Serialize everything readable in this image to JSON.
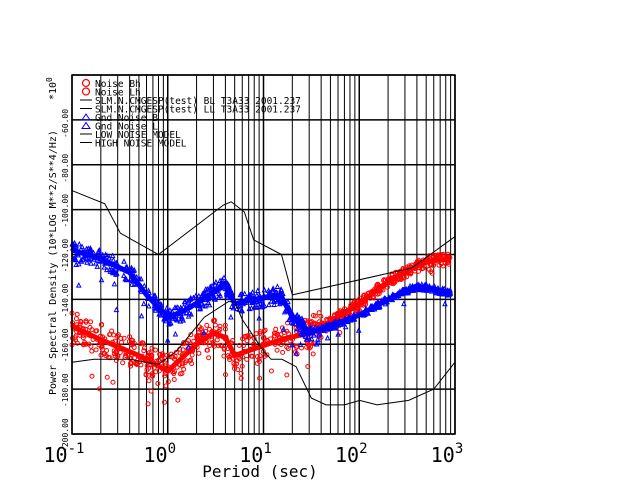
{
  "chart_data": {
    "type": "line",
    "title": "",
    "xlabel": "Period (sec)",
    "ylabel": "Power Spectral Density (10*LOG M**2/S**4/Hz)",
    "y_multiplier": "*10",
    "y_multiplier_exp": "0",
    "xscale": "log",
    "xlim": [
      0.1,
      1000
    ],
    "ylim": [
      -200,
      -40
    ],
    "x_ticks": [
      {
        "base": "10",
        "exp": "-1"
      },
      {
        "base": "10",
        "exp": "0"
      },
      {
        "base": "10",
        "exp": "1"
      },
      {
        "base": "10",
        "exp": "2"
      },
      {
        "base": "10",
        "exp": "3"
      }
    ],
    "y_ticks": [
      {
        "v": -200,
        "label": "-200.00"
      },
      {
        "v": -180,
        "label": "-180.00"
      },
      {
        "v": -160,
        "label": "-160.00"
      },
      {
        "v": -140,
        "label": "-140.00"
      },
      {
        "v": -120,
        "label": "-120.00"
      },
      {
        "v": -100,
        "label": "-100.00"
      },
      {
        "v": -80,
        "label": "-80.00"
      },
      {
        "v": -60,
        "label": "-60.00"
      }
    ],
    "grid": true,
    "legend": {
      "placement": "top-left",
      "entries": [
        {
          "label": "Noise Bh",
          "marker": "circle",
          "color": "#ff0000"
        },
        {
          "label": "Noise Lh",
          "marker": "circle",
          "color": "#ff0000"
        },
        {
          "label": "SLM.N.CMGESP(test) BL T3A33 2001.237",
          "marker": "line",
          "color": "#000000"
        },
        {
          "label": "SLM.N.CMGESP(test) LL T3A33 2001.237",
          "marker": "line",
          "color": "#000000"
        },
        {
          "label": "Gnd Noise B",
          "marker": "triangle",
          "color": "#0000ff"
        },
        {
          "label": "Gnd Noise L",
          "marker": "triangle",
          "color": "#0000ff"
        },
        {
          "label": "LOW NOISE MODEL",
          "marker": "line",
          "color": "#000000"
        },
        {
          "label": "HIGH NOISE MODEL",
          "marker": "line",
          "color": "#000000"
        }
      ]
    },
    "series": [
      {
        "name": "Noise",
        "color": "#ff0000",
        "marker": "circle",
        "x": [
          0.1,
          0.2,
          0.5,
          1,
          2,
          3,
          4,
          5,
          8,
          15,
          30,
          50,
          100,
          200,
          500,
          900
        ],
        "y": [
          -152,
          -158,
          -165,
          -172,
          -160,
          -155,
          -157,
          -165,
          -162,
          -158,
          -155,
          -150,
          -142,
          -132,
          -123,
          -122
        ]
      },
      {
        "name": "Gnd Noise",
        "color": "#0000ff",
        "marker": "triangle",
        "x": [
          0.1,
          0.2,
          0.4,
          0.6,
          1,
          1.5,
          3,
          4,
          5,
          8,
          15,
          20,
          30,
          50,
          100,
          200,
          400,
          900
        ],
        "y": [
          -118,
          -122,
          -128,
          -138,
          -148,
          -145,
          -137,
          -133,
          -142,
          -140,
          -138,
          -148,
          -155,
          -152,
          -147,
          -140,
          -134,
          -137
        ]
      },
      {
        "name": "LOW NOISE MODEL",
        "color": "#000000",
        "x": [
          0.1,
          0.17,
          0.4,
          0.8,
          1.24,
          2.4,
          4.3,
          5,
          6,
          10,
          12,
          15.6,
          21.9,
          31.6,
          45,
          70,
          101,
          154,
          328,
          600,
          1000
        ],
        "y": [
          -168,
          -166.7,
          -166.7,
          -169,
          -163,
          -148,
          -141,
          -141,
          -149,
          -163,
          -166.7,
          -166.7,
          -170,
          -184,
          -187,
          -187,
          -185,
          -187,
          -185,
          -180,
          -168
        ]
      },
      {
        "name": "HIGH NOISE MODEL",
        "color": "#000000",
        "x": [
          0.1,
          0.22,
          0.32,
          0.8,
          3.8,
          4.6,
          6.3,
          7.9,
          15.4,
          20,
          354,
          1000
        ],
        "y": [
          -91.5,
          -97.4,
          -110.5,
          -120,
          -98,
          -96.5,
          -101,
          -113.5,
          -120,
          -138,
          -126,
          -112
        ]
      }
    ]
  }
}
